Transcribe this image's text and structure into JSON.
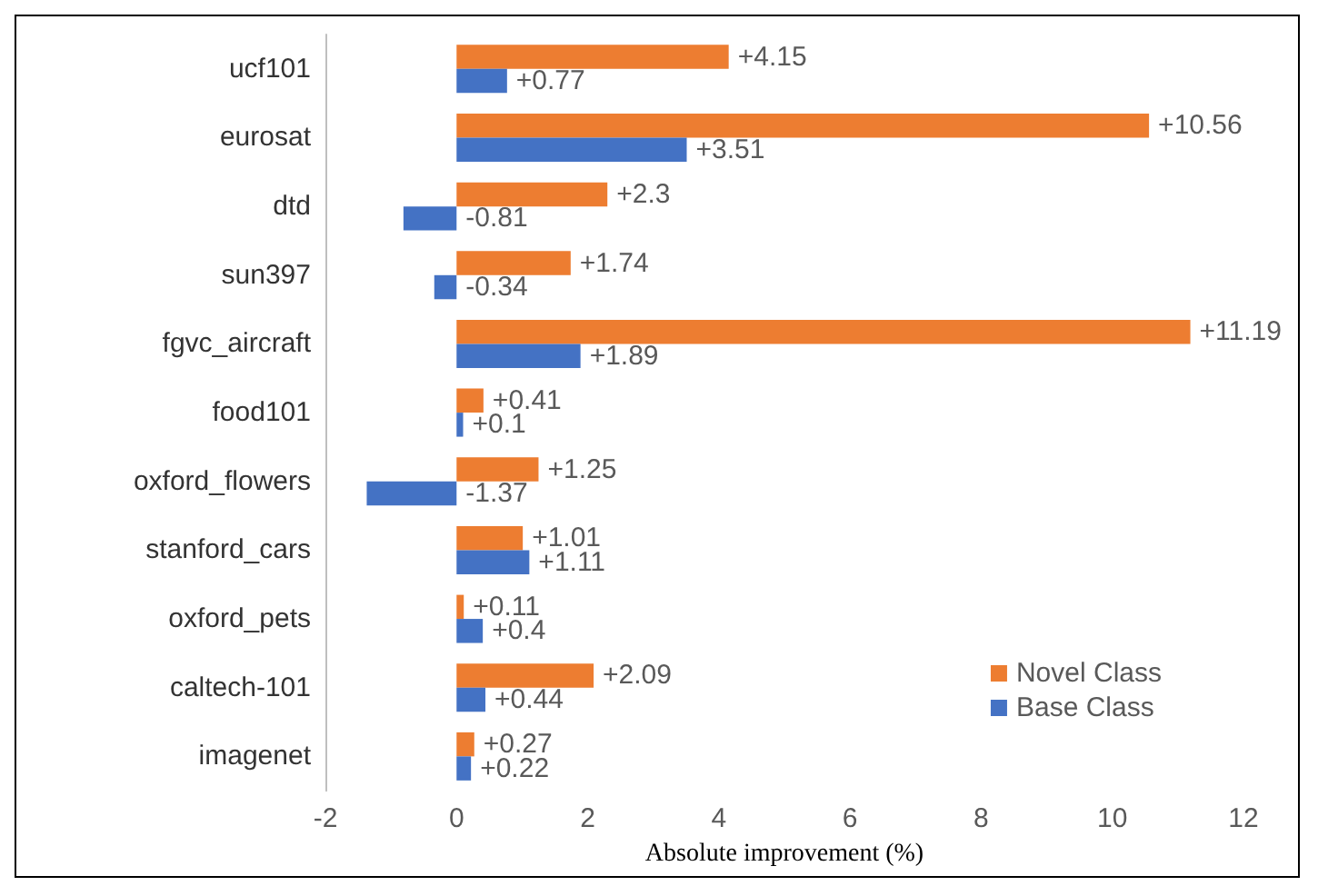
{
  "chart_data": {
    "type": "bar",
    "orientation": "horizontal",
    "xlabel": "Absolute improvement (%)",
    "categories": [
      "ucf101",
      "eurosat",
      "dtd",
      "sun397",
      "fgvc_aircraft",
      "food101",
      "oxford_flowers",
      "stanford_cars",
      "oxford_pets",
      "caltech-101",
      "imagenet"
    ],
    "series": [
      {
        "name": "Novel Class",
        "color": "#ed7d31",
        "values": [
          4.15,
          10.56,
          2.3,
          1.74,
          11.19,
          0.41,
          1.25,
          1.01,
          0.11,
          2.09,
          0.27
        ],
        "value_labels": [
          "+4.15",
          "+10.56",
          "+2.3",
          "+1.74",
          "+11.19",
          "+0.41",
          "+1.25",
          "+1.01",
          "+0.11",
          "+2.09",
          "+0.27"
        ]
      },
      {
        "name": "Base Class",
        "color": "#4472c4",
        "values": [
          0.77,
          3.51,
          -0.81,
          -0.34,
          1.89,
          0.1,
          -1.37,
          1.11,
          0.4,
          0.44,
          0.22
        ],
        "value_labels": [
          "+0.77",
          "+3.51",
          "-0.81",
          "-0.34",
          "+1.89",
          "+0.1",
          "-1.37",
          "+1.11",
          "+0.4",
          "+0.44",
          "+0.22"
        ]
      }
    ],
    "xlim": [
      -2,
      12
    ],
    "xticks": [
      -2,
      0,
      2,
      4,
      6,
      8,
      10,
      12
    ],
    "grid": false,
    "legend": "bottom right"
  }
}
